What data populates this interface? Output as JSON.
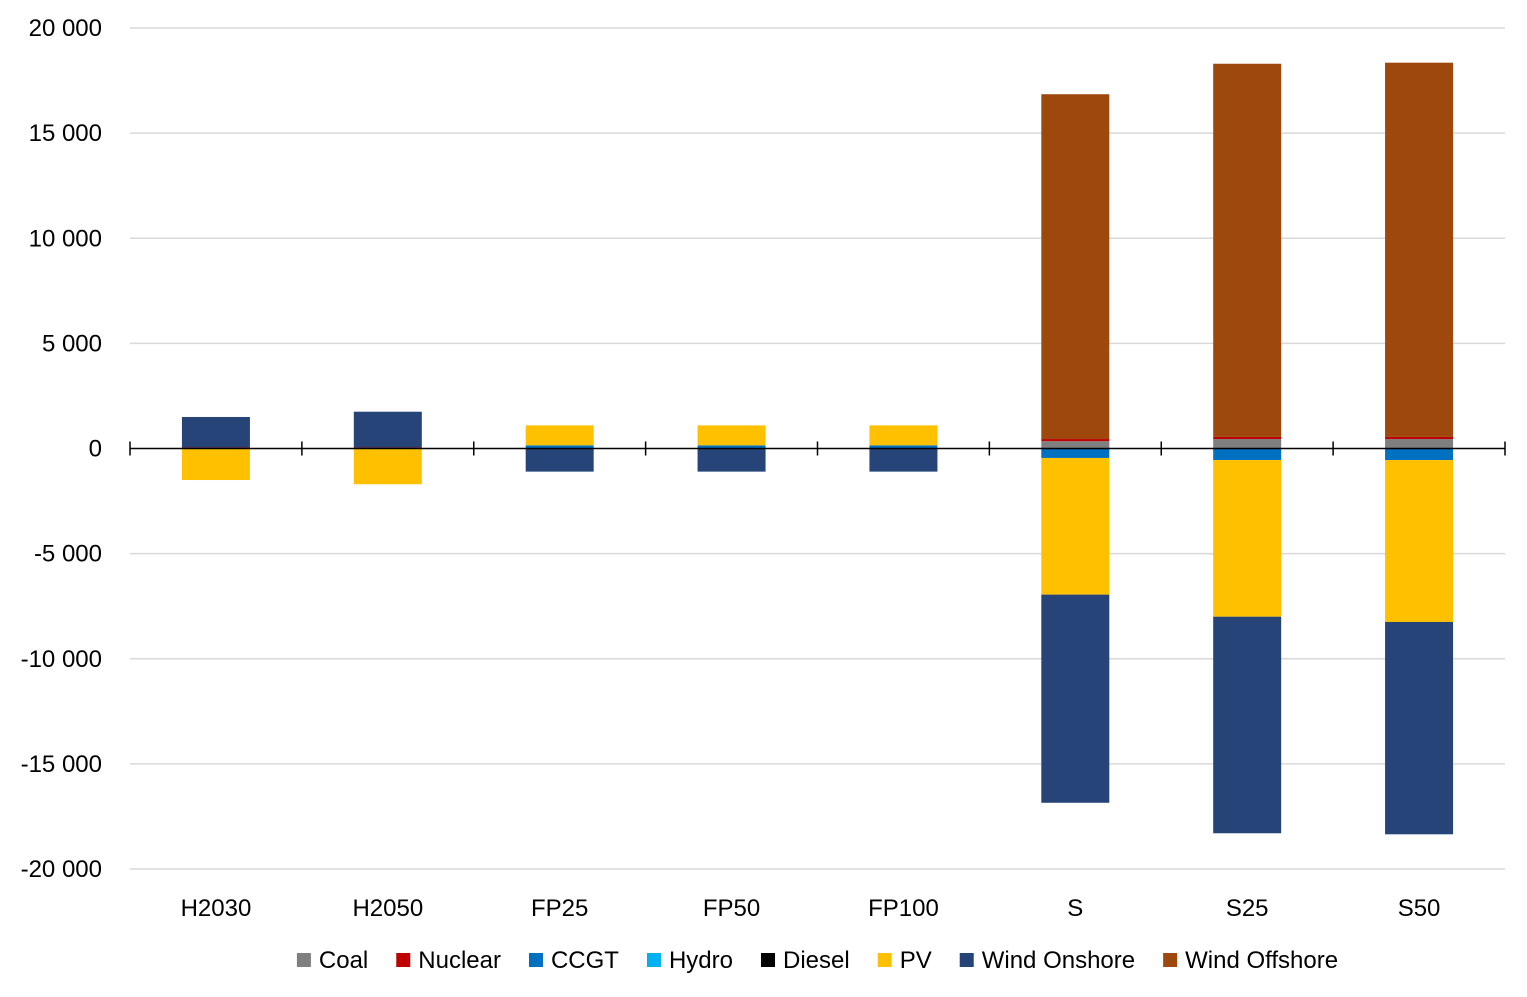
{
  "chart_data": {
    "type": "bar",
    "stacked": true,
    "categories": [
      "H2030",
      "H2050",
      "FP25",
      "FP50",
      "FP100",
      "S",
      "S25",
      "S50"
    ],
    "ylim": [
      -20000,
      20000
    ],
    "yticks": [
      20000,
      15000,
      10000,
      5000,
      0,
      -5000,
      -10000,
      -15000,
      -20000
    ],
    "ytick_labels": [
      "20 000",
      "15 000",
      "10 000",
      "5 000",
      "0",
      "-5 000",
      "-10 000",
      "-15 000",
      "-20 000"
    ],
    "grid": true,
    "legend_position": "bottom",
    "series": [
      {
        "name": "Coal",
        "color": "#7f7f7f",
        "values": [
          0,
          0,
          0,
          0,
          0,
          350,
          450,
          450
        ]
      },
      {
        "name": "Nuclear",
        "color": "#c00000",
        "values": [
          50,
          50,
          0,
          0,
          0,
          100,
          100,
          100
        ]
      },
      {
        "name": "CCGT",
        "color": "#0070c0",
        "values": [
          0,
          0,
          150,
          150,
          150,
          -450,
          -550,
          -550
        ]
      },
      {
        "name": "Hydro",
        "color": "#00b0f0",
        "values": [
          0,
          0,
          0,
          0,
          0,
          0,
          0,
          0
        ]
      },
      {
        "name": "Diesel",
        "color": "#000000",
        "values": [
          0,
          0,
          0,
          0,
          0,
          0,
          0,
          0
        ]
      },
      {
        "name": "PV",
        "color": "#ffc000",
        "values": [
          -1500,
          -1700,
          950,
          950,
          950,
          -6500,
          -7450,
          -7700
        ]
      },
      {
        "name": "Wind Onshore",
        "color": "#264478",
        "values": [
          1450,
          1700,
          -1100,
          -1100,
          -1100,
          -9900,
          -10300,
          -10100
        ]
      },
      {
        "name": "Wind Offshore",
        "color": "#9e480e",
        "values": [
          0,
          0,
          0,
          0,
          0,
          16400,
          17750,
          17800
        ]
      }
    ]
  }
}
